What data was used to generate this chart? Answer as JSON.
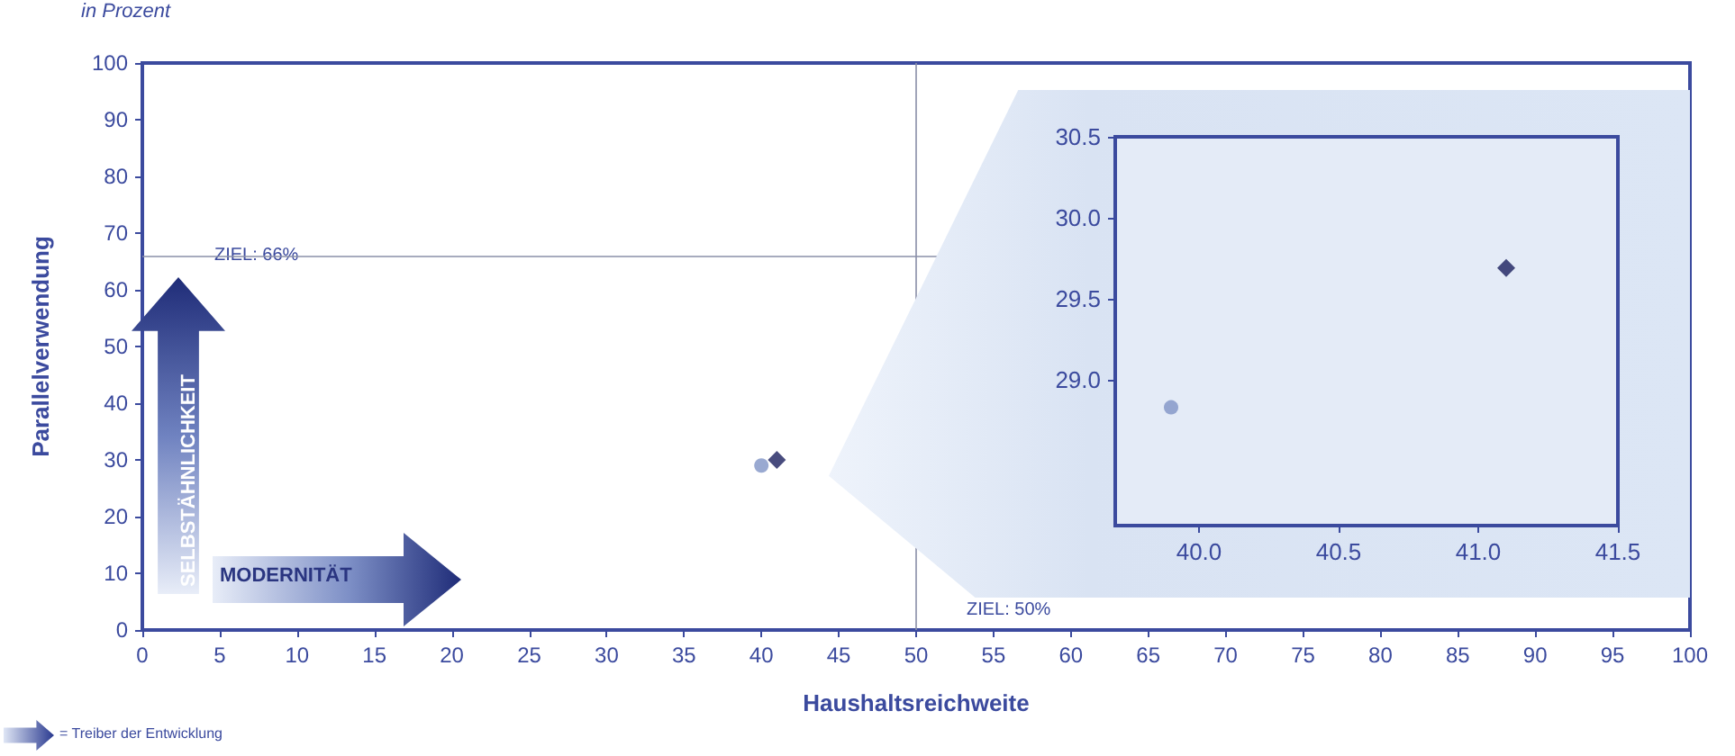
{
  "chart_data": [
    {
      "type": "scatter",
      "subtitle": "in Prozent",
      "xlabel": "Haushaltsreichweite",
      "ylabel": "Parallelverwendung",
      "series": [
        {
          "color": "#7f93c6",
          "marker": "circle",
          "x": [
            40
          ],
          "values": [
            29
          ]
        },
        {
          "color": "#1a1f5e",
          "marker": "diamond",
          "x": [
            41
          ],
          "values": [
            30
          ]
        }
      ],
      "xlim": [
        0,
        100
      ],
      "xticks": [
        0,
        5,
        10,
        15,
        20,
        25,
        30,
        35,
        40,
        45,
        50,
        55,
        60,
        65,
        70,
        75,
        80,
        85,
        90,
        95,
        100
      ],
      "ylim": [
        0,
        100
      ],
      "yticks": [
        0,
        10,
        20,
        30,
        40,
        50,
        60,
        70,
        80,
        90,
        100
      ],
      "ref_lines": [
        {
          "axis": "y",
          "value": 66,
          "label": "ZIEL: 66%"
        },
        {
          "axis": "x",
          "value": 50,
          "label": "ZIEL: 50%"
        }
      ],
      "annotations": [
        "MODERNITÄT",
        "SELBSTÄHNLICHKEIT",
        "= Treiber der Entwicklung"
      ],
      "grid": false
    },
    {
      "type": "scatter",
      "series": [
        {
          "color": "#7f93c6",
          "marker": "circle",
          "x": [
            39.9
          ],
          "values": [
            28.83
          ]
        },
        {
          "color": "#1a1f5e",
          "marker": "diamond",
          "x": [
            41.1
          ],
          "values": [
            29.69
          ]
        }
      ],
      "xlim": [
        39.7,
        41.5
      ],
      "xticks": [
        {
          "value": 40,
          "label": "40.0"
        },
        40.5,
        {
          "value": 41,
          "label": "41.0"
        },
        41.5
      ],
      "ylim": [
        28.1,
        30.5
      ],
      "yticks": [
        {
          "value": 29,
          "label": "29.0"
        },
        29.5,
        {
          "value": 30,
          "label": "30.0"
        },
        30.5
      ],
      "grid": false
    }
  ]
}
